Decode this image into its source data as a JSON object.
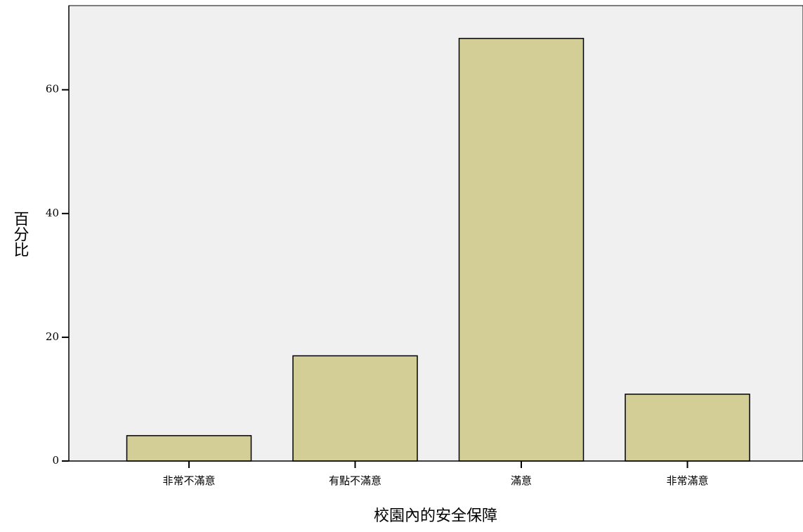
{
  "chart_data": {
    "type": "bar",
    "x_label": "校園內的安全保障",
    "y_label": "百分比",
    "categories": [
      "非常不滿意",
      "有點不滿意",
      "滿意",
      "非常滿意"
    ],
    "values": [
      4.1,
      17.0,
      68.3,
      10.8
    ],
    "color": "#d3ce96",
    "ylim": [
      0,
      73.6
    ],
    "yticks": [
      0,
      20,
      40,
      60
    ],
    "grid": false
  }
}
